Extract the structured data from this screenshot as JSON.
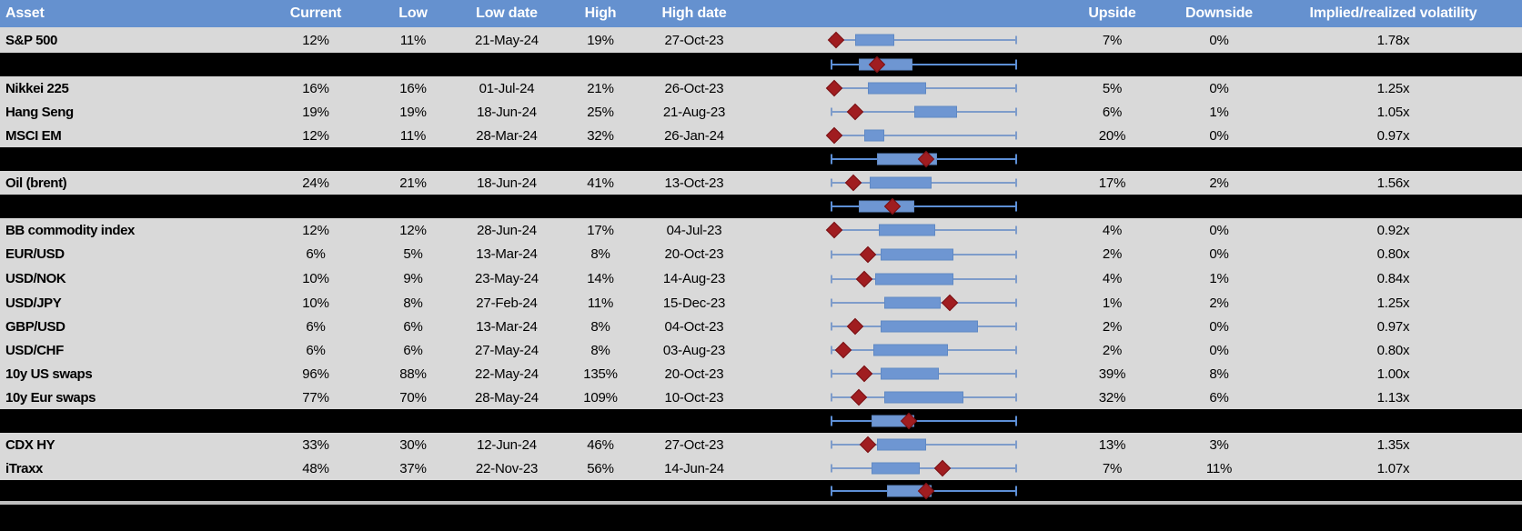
{
  "header": {
    "columns": [
      "Asset",
      "Current",
      "Low",
      "Low date",
      "High",
      "High date",
      "Upside",
      "Downside",
      "Implied/realized volatility"
    ]
  },
  "colors": {
    "header_bg": "#6591cf",
    "row_bg": "#d9d9d9",
    "separator_bg": "#000000",
    "box_fill": "#6e96d2",
    "whisker": "#7e9cca",
    "whisker_on_black": "#5d8fd6",
    "marker": "#a01d20"
  },
  "chart_data": {
    "type": "table",
    "subtype": "table-with-horizontal-boxplots",
    "note": "Each row shows a normalized 1y volatility range box plot (whiskers = low..high mapped 0..1); red diamond = current level; black separator rows show aggregate box plots.",
    "columns": [
      "Asset",
      "Current",
      "Low",
      "Low date",
      "High",
      "High date",
      "Upside",
      "Downside",
      "Implied/realized volatility"
    ],
    "rows": [
      {
        "type": "data",
        "asset": "S&P 500",
        "current": "12%",
        "low": "11%",
        "low_date": "21-May-24",
        "high": "19%",
        "high_date": "27-Oct-23",
        "upside": "7%",
        "downside": "0%",
        "vol": "1.78x",
        "plot": {
          "box": [
            0.13,
            0.34
          ],
          "diamond": 0.03
        },
        "size": "tall"
      },
      {
        "type": "sep",
        "plot": {
          "box": [
            0.15,
            0.44
          ],
          "diamond": 0.25
        }
      },
      {
        "type": "data",
        "asset": "Nikkei 225",
        "current": "16%",
        "low": "16%",
        "low_date": "01-Jul-24",
        "high": "21%",
        "high_date": "26-Oct-23",
        "upside": "5%",
        "downside": "0%",
        "vol": "1.25x",
        "plot": {
          "box": [
            0.2,
            0.51
          ],
          "diamond": 0.02
        }
      },
      {
        "type": "data",
        "asset": "Hang Seng",
        "current": "19%",
        "low": "19%",
        "low_date": "18-Jun-24",
        "high": "25%",
        "high_date": "21-Aug-23",
        "upside": "6%",
        "downside": "1%",
        "vol": "1.05x",
        "plot": {
          "box": [
            0.45,
            0.68
          ],
          "diamond": 0.13
        }
      },
      {
        "type": "data",
        "asset": "MSCI EM",
        "current": "12%",
        "low": "11%",
        "low_date": "28-Mar-24",
        "high": "32%",
        "high_date": "26-Jan-24",
        "upside": "20%",
        "downside": "0%",
        "vol": "0.97x",
        "plot": {
          "box": [
            0.18,
            0.29
          ],
          "diamond": 0.02
        }
      },
      {
        "type": "sep",
        "plot": {
          "box": [
            0.25,
            0.57
          ],
          "diamond": 0.51
        }
      },
      {
        "type": "data",
        "asset": "Oil (brent)",
        "current": "24%",
        "low": "21%",
        "low_date": "18-Jun-24",
        "high": "41%",
        "high_date": "13-Oct-23",
        "upside": "17%",
        "downside": "2%",
        "vol": "1.56x",
        "plot": {
          "box": [
            0.21,
            0.54
          ],
          "diamond": 0.12
        }
      },
      {
        "type": "sep",
        "plot": {
          "box": [
            0.15,
            0.45
          ],
          "diamond": 0.33
        }
      },
      {
        "type": "data",
        "asset": "BB commodity index",
        "current": "12%",
        "low": "12%",
        "low_date": "28-Jun-24",
        "high": "17%",
        "high_date": "04-Jul-23",
        "upside": "4%",
        "downside": "0%",
        "vol": "0.92x",
        "plot": {
          "box": [
            0.26,
            0.56
          ],
          "diamond": 0.02
        }
      },
      {
        "type": "data",
        "asset": "EUR/USD",
        "current": "6%",
        "low": "5%",
        "low_date": "13-Mar-24",
        "high": "8%",
        "high_date": "20-Oct-23",
        "upside": "2%",
        "downside": "0%",
        "vol": "0.80x",
        "plot": {
          "box": [
            0.27,
            0.66
          ],
          "diamond": 0.2
        },
        "size": "tall2"
      },
      {
        "type": "data",
        "asset": "USD/NOK",
        "current": "10%",
        "low": "9%",
        "low_date": "23-May-24",
        "high": "14%",
        "high_date": "14-Aug-23",
        "upside": "4%",
        "downside": "1%",
        "vol": "0.84x",
        "plot": {
          "box": [
            0.24,
            0.66
          ],
          "diamond": 0.18
        },
        "size": "tall2"
      },
      {
        "type": "data",
        "asset": "USD/JPY",
        "current": "10%",
        "low": "8%",
        "low_date": "27-Feb-24",
        "high": "11%",
        "high_date": "15-Dec-23",
        "upside": "1%",
        "downside": "2%",
        "vol": "1.25x",
        "plot": {
          "box": [
            0.29,
            0.59
          ],
          "diamond": 0.64
        }
      },
      {
        "type": "data",
        "asset": "GBP/USD",
        "current": "6%",
        "low": "6%",
        "low_date": "13-Mar-24",
        "high": "8%",
        "high_date": "04-Oct-23",
        "upside": "2%",
        "downside": "0%",
        "vol": "0.97x",
        "plot": {
          "box": [
            0.27,
            0.79
          ],
          "diamond": 0.13
        }
      },
      {
        "type": "data",
        "asset": "USD/CHF",
        "current": "6%",
        "low": "6%",
        "low_date": "27-May-24",
        "high": "8%",
        "high_date": "03-Aug-23",
        "upside": "2%",
        "downside": "0%",
        "vol": "0.80x",
        "plot": {
          "box": [
            0.23,
            0.63
          ],
          "diamond": 0.07
        }
      },
      {
        "type": "data",
        "asset": "10y US swaps",
        "current": "96%",
        "low": "88%",
        "low_date": "22-May-24",
        "high": "135%",
        "high_date": "20-Oct-23",
        "upside": "39%",
        "downside": "8%",
        "vol": "1.00x",
        "plot": {
          "box": [
            0.27,
            0.58
          ],
          "diamond": 0.18
        }
      },
      {
        "type": "data",
        "asset": "10y Eur swaps",
        "current": "77%",
        "low": "70%",
        "low_date": "28-May-24",
        "high": "109%",
        "high_date": "10-Oct-23",
        "upside": "32%",
        "downside": "6%",
        "vol": "1.13x",
        "plot": {
          "box": [
            0.29,
            0.71
          ],
          "diamond": 0.15
        }
      },
      {
        "type": "sep",
        "plot": {
          "box": [
            0.22,
            0.45
          ],
          "diamond": 0.42
        }
      },
      {
        "type": "data",
        "asset": "CDX HY",
        "current": "33%",
        "low": "30%",
        "low_date": "12-Jun-24",
        "high": "46%",
        "high_date": "27-Oct-23",
        "upside": "13%",
        "downside": "3%",
        "vol": "1.35x",
        "plot": {
          "box": [
            0.25,
            0.51
          ],
          "diamond": 0.2
        }
      },
      {
        "type": "data",
        "asset": "iTraxx",
        "current": "48%",
        "low": "37%",
        "low_date": "22-Nov-23",
        "high": "56%",
        "high_date": "14-Jun-24",
        "upside": "7%",
        "downside": "11%",
        "vol": "1.07x",
        "plot": {
          "box": [
            0.22,
            0.48
          ],
          "diamond": 0.6
        }
      },
      {
        "type": "sep",
        "plot": {
          "box": [
            0.3,
            0.54
          ],
          "diamond": 0.51
        },
        "size": "short"
      }
    ]
  }
}
